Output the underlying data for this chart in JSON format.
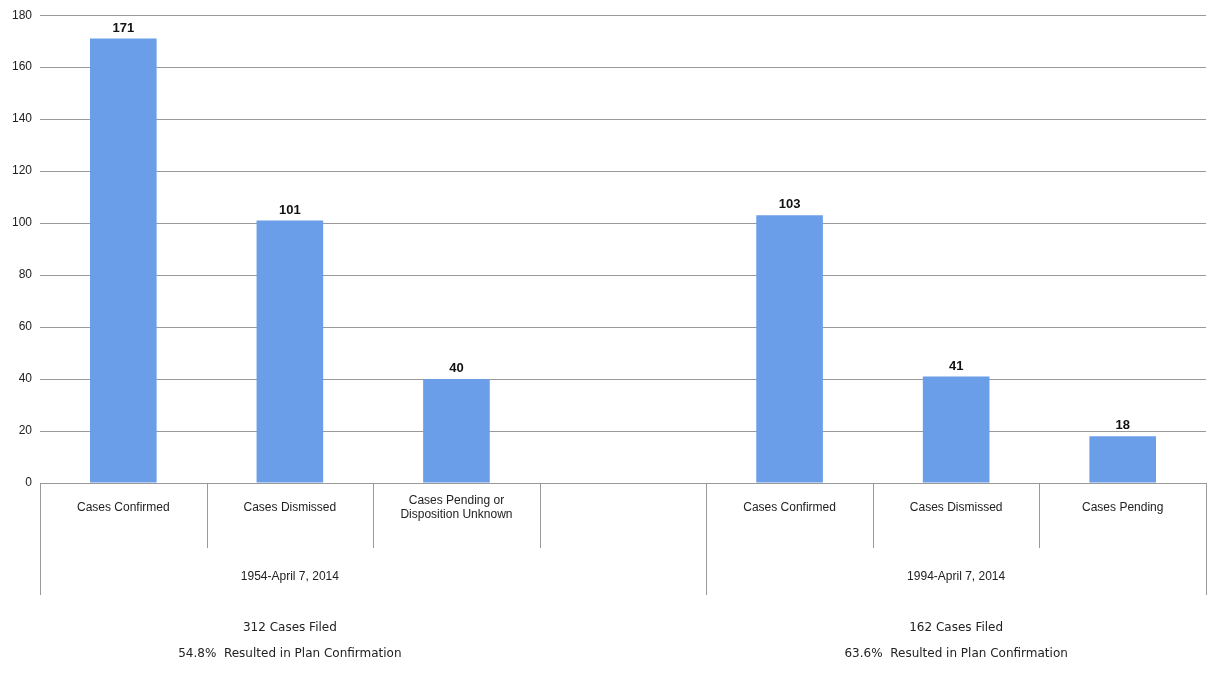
{
  "chart_data": {
    "type": "bar",
    "categories": [
      "Cases Confirmed",
      "Cases Dismissed",
      "Cases Pending or Disposition Unknown",
      null,
      "Cases Confirmed",
      "Cases Dismissed",
      "Cases Pending"
    ],
    "values": [
      171,
      101,
      40,
      null,
      103,
      41,
      18
    ],
    "color": "#6a9ee8",
    "ylim": [
      0,
      180
    ],
    "yticks": [
      0,
      20,
      40,
      60,
      80,
      100,
      120,
      140,
      160,
      180
    ],
    "grid": "y",
    "data_labels": true,
    "legend": false,
    "annotations": [
      "1954-April 7, 2014",
      "1994-April 7, 2014",
      "312 Cases Filed",
      "54.8%  Resulted in Plan Confirmation",
      "162 Cases Filed",
      "63.6%  Resulted in Plan Confirmation"
    ]
  }
}
